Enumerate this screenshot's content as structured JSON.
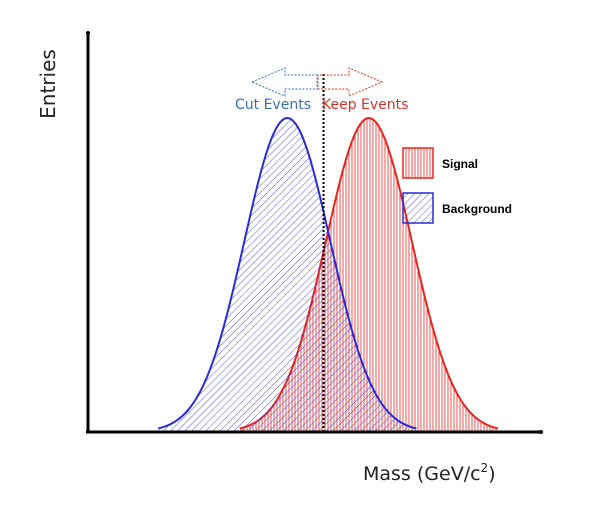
{
  "chart_data": {
    "type": "area",
    "title": "",
    "xlabel": "Mass (GeV/c",
    "xlabel_superscript": "2",
    "xlabel_suffix": ")",
    "ylabel": "Entries",
    "series": [
      {
        "name": "Signal",
        "color": "#e8261f",
        "hatch": "vertical",
        "center": 0.62,
        "sigma": 0.095,
        "peak": 1.0
      },
      {
        "name": "Background",
        "color": "#2a2ad8",
        "hatch": "diagonal",
        "center": 0.44,
        "sigma": 0.095,
        "peak": 1.0
      }
    ],
    "cut": {
      "position": 0.52,
      "style": "dotted",
      "color": "#000000"
    },
    "annotations": {
      "cut_label": "Cut Events",
      "keep_label": "Keep Events",
      "cut_color": "#3b6fb4",
      "keep_color": "#d0352b"
    },
    "legend": {
      "placement": "right",
      "items": [
        "Signal",
        "Background"
      ]
    },
    "grid": false,
    "axis_color": "#000000"
  }
}
